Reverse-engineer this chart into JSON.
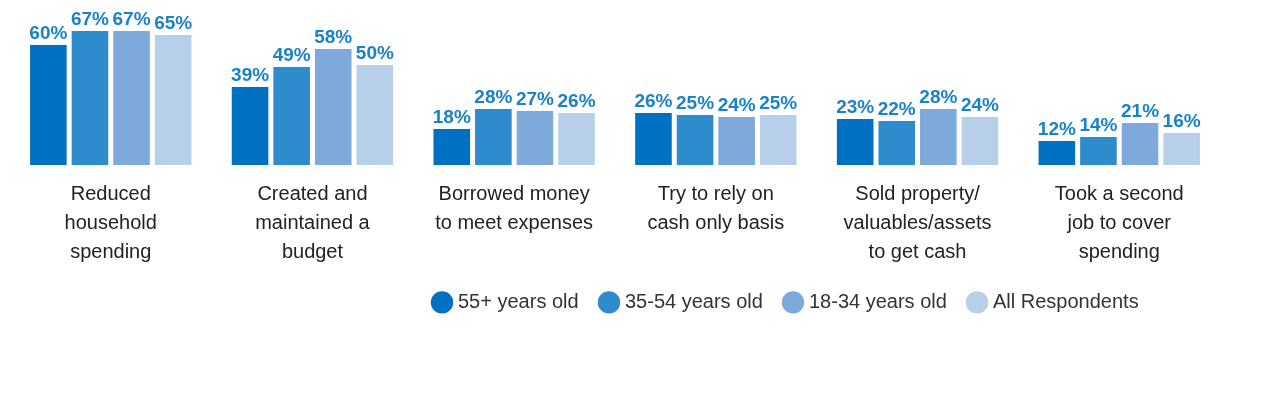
{
  "chart_data": {
    "type": "bar",
    "categories": [
      "Reduced household spending",
      "Created and maintained a budget",
      "Borrowed money to meet expenses",
      "Try to rely on cash only basis",
      "Sold property/ valuables/assets to get cash",
      "Took a second job to cover spending"
    ],
    "series": [
      {
        "name": "55+ years old",
        "color": "#0070c0",
        "values": [
          60,
          39,
          18,
          26,
          23,
          12
        ],
        "value_labels": [
          "60%",
          "39%",
          "18%",
          "26%",
          "23%",
          "12%"
        ]
      },
      {
        "name": "35-54 years old",
        "color": "#2e8bcc",
        "values": [
          67,
          49,
          28,
          25,
          22,
          14
        ],
        "value_labels": [
          "67%",
          "49%",
          "28%",
          "25%",
          "22%",
          "14%"
        ]
      },
      {
        "name": "18-34 years old",
        "color": "#7eaadb",
        "values": [
          67,
          58,
          27,
          24,
          28,
          21
        ],
        "value_labels": [
          "67%",
          "58%",
          "27%",
          "24%",
          "28%",
          "21%"
        ]
      },
      {
        "name": "All Respondents",
        "color": "#b8cfea",
        "values": [
          65,
          50,
          26,
          25,
          24,
          16
        ],
        "value_labels": [
          "65%",
          "50%",
          "26%",
          "25%",
          "24%",
          "16%"
        ]
      }
    ],
    "legend": "bottom right",
    "grid": false
  }
}
